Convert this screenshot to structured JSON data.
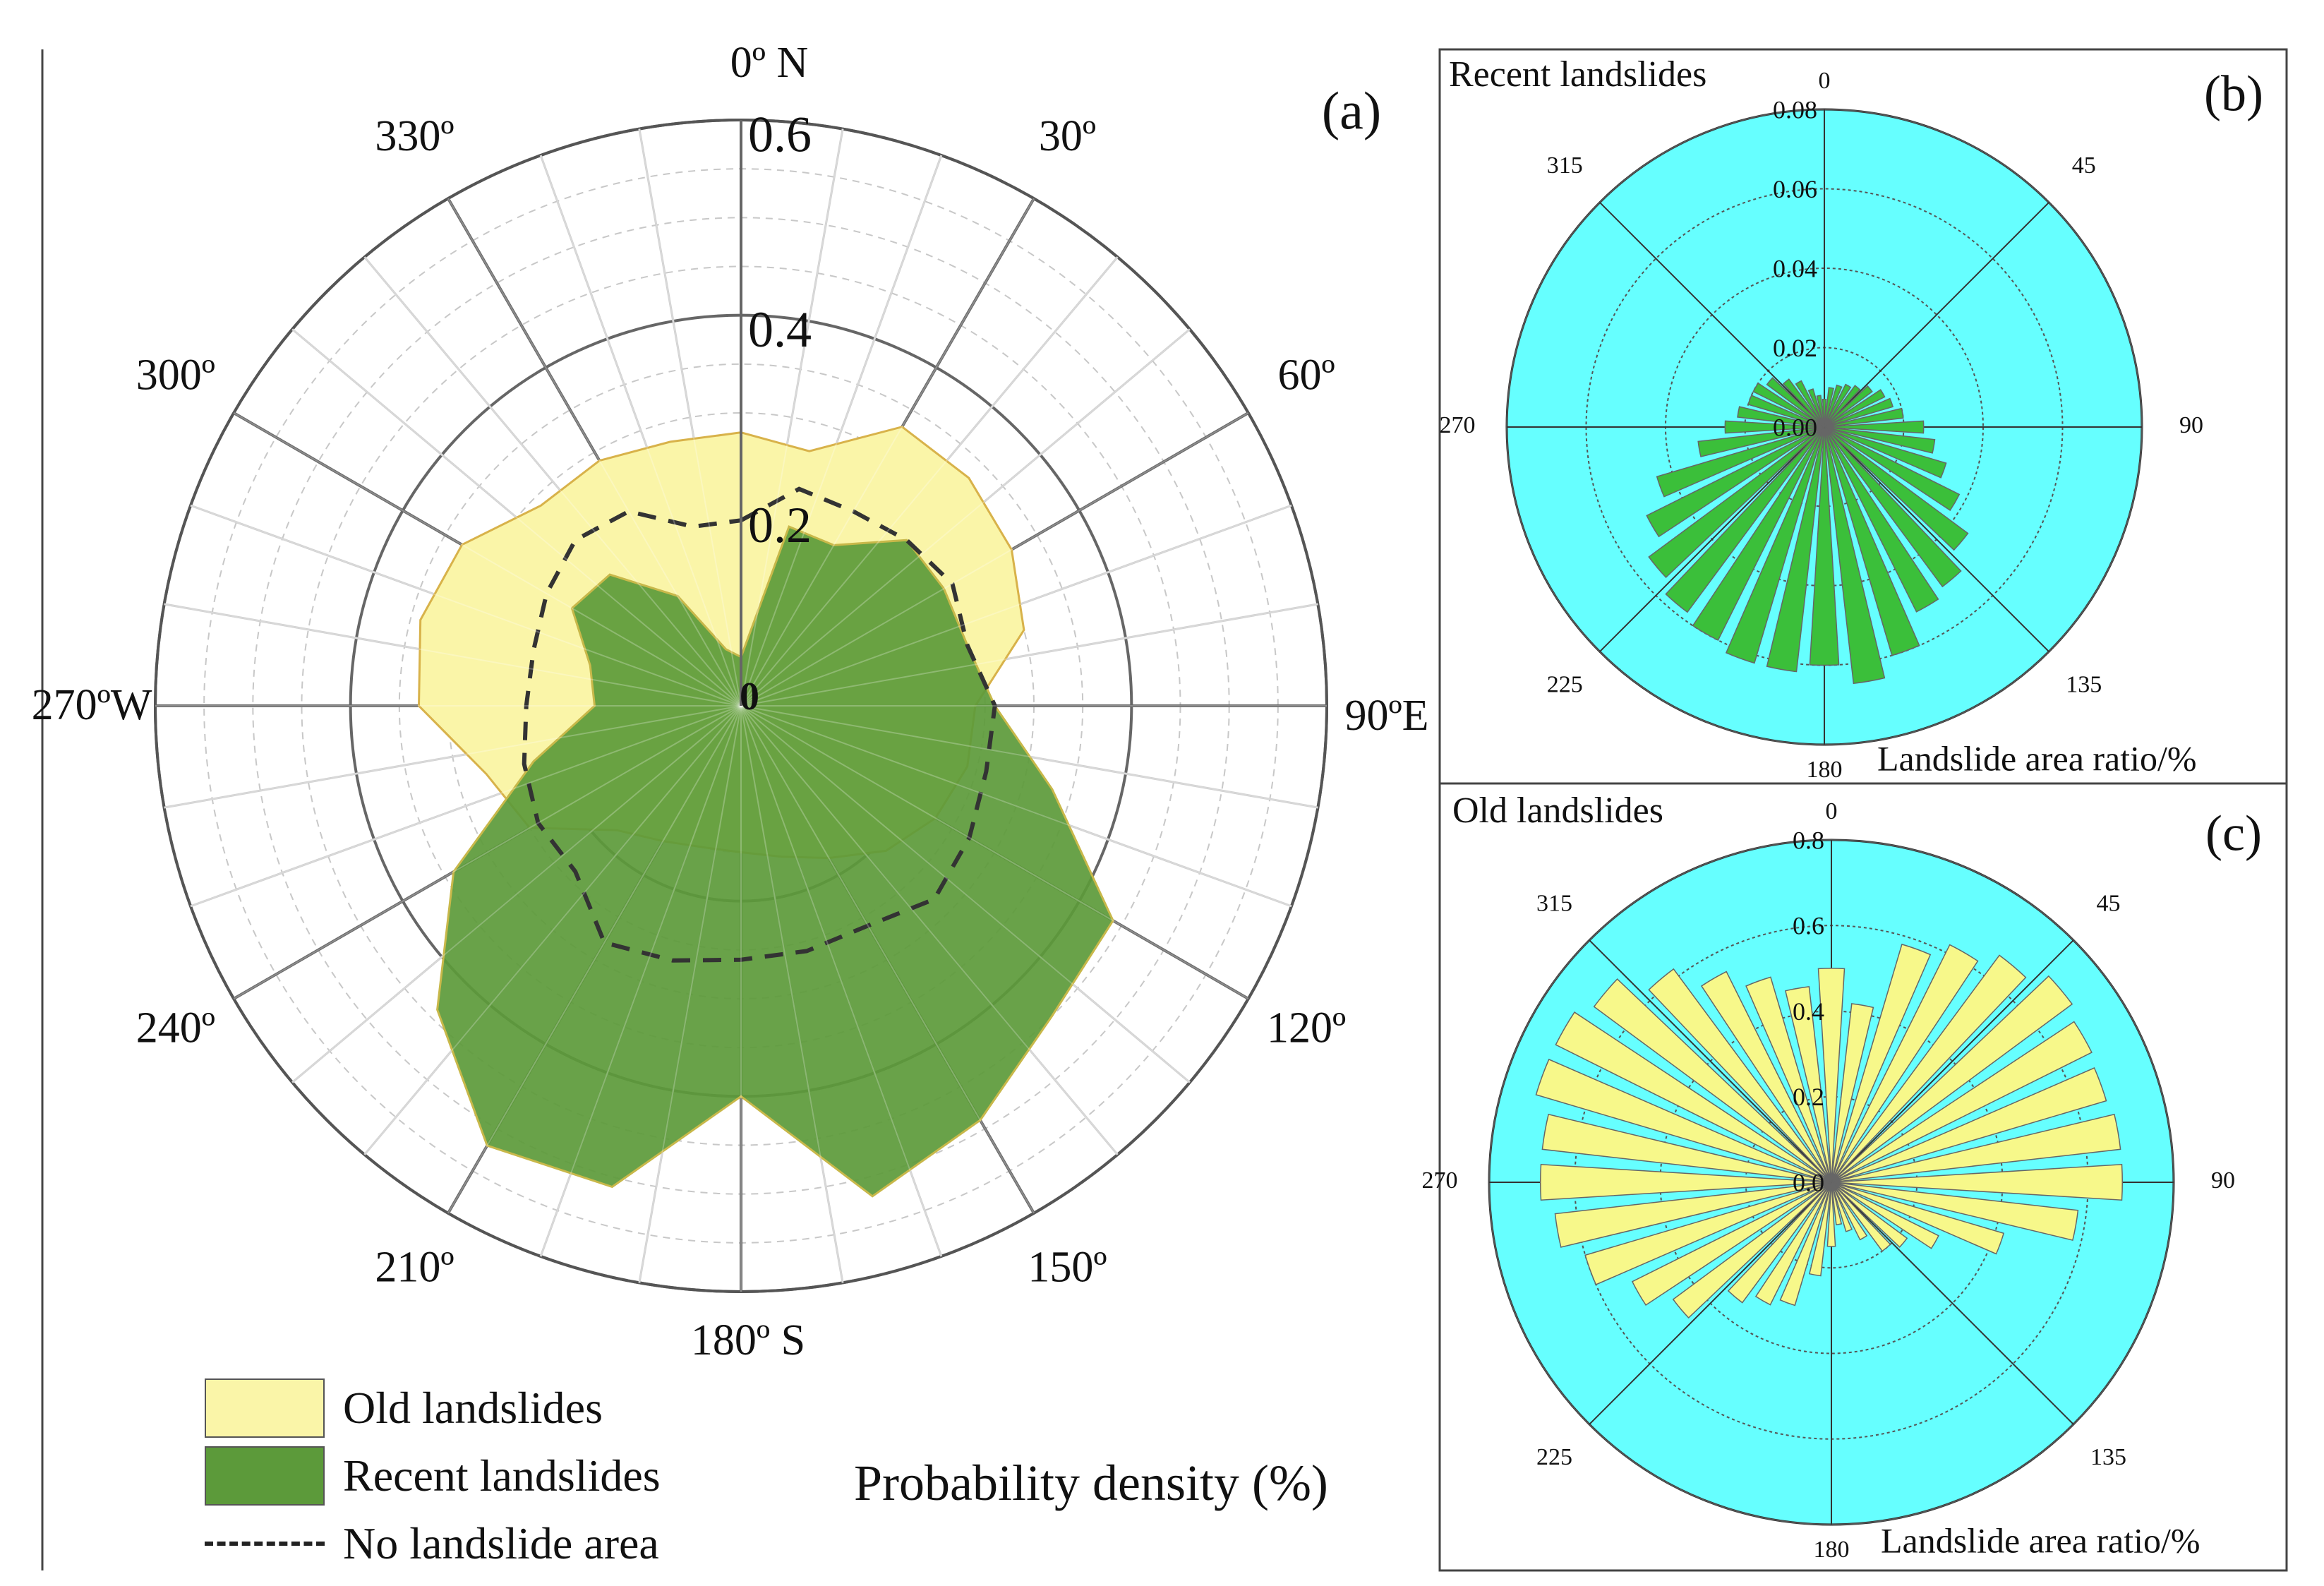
{
  "colors": {
    "old_fill": "#faf5a8",
    "recent_fill": "#5c9a3a",
    "recent_bar": "#3bbf3a",
    "old_bar": "#f7f88a",
    "panel_bg": "#66ffff",
    "grid": "#8a8a8a"
  },
  "chart_data": [
    {
      "panel": "(a)",
      "type": "radar",
      "subplot_label": "(a)",
      "axis_label": "Probability density (%)",
      "rlim": [
        0,
        0.6
      ],
      "radial_ticks": [
        {
          "value": 0,
          "label": "0"
        },
        {
          "value": 0.2,
          "label": "0.2"
        },
        {
          "value": 0.4,
          "label": "0.4"
        },
        {
          "value": 0.6,
          "label": "0.6"
        }
      ],
      "angle_labels": [
        {
          "angle": 0,
          "label": "0º N"
        },
        {
          "angle": 30,
          "label": "30º"
        },
        {
          "angle": 60,
          "label": "60º"
        },
        {
          "angle": 90,
          "label": "90ºE"
        },
        {
          "angle": 120,
          "label": "120º"
        },
        {
          "angle": 150,
          "label": "150º"
        },
        {
          "angle": 180,
          "label": "180º S"
        },
        {
          "angle": 210,
          "label": "210º"
        },
        {
          "angle": 240,
          "label": "240º"
        },
        {
          "angle": 270,
          "label": "270ºW"
        },
        {
          "angle": 300,
          "label": "300º"
        },
        {
          "angle": 330,
          "label": "330º"
        }
      ],
      "series": [
        {
          "name": "Old landslides",
          "style": "filled",
          "points": [
            [
              0,
              0.28
            ],
            [
              15,
              0.27
            ],
            [
              30,
              0.33
            ],
            [
              45,
              0.33
            ],
            [
              60,
              0.32
            ],
            [
              75,
              0.3
            ],
            [
              90,
              0.24
            ],
            [
              105,
              0.24
            ],
            [
              120,
              0.23
            ],
            [
              135,
              0.21
            ],
            [
              150,
              0.18
            ],
            [
              165,
              0.16
            ],
            [
              180,
              0.15
            ],
            [
              195,
              0.15
            ],
            [
              210,
              0.16
            ],
            [
              225,
              0.18
            ],
            [
              240,
              0.25
            ],
            [
              255,
              0.27
            ],
            [
              270,
              0.33
            ],
            [
              285,
              0.34
            ],
            [
              300,
              0.33
            ],
            [
              315,
              0.29
            ],
            [
              330,
              0.29
            ],
            [
              345,
              0.28
            ]
          ]
        },
        {
          "name": "Recent landslides",
          "style": "filled",
          "points": [
            [
              0,
              0.05
            ],
            [
              15,
              0.19
            ],
            [
              30,
              0.19
            ],
            [
              45,
              0.24
            ],
            [
              60,
              0.24
            ],
            [
              75,
              0.24
            ],
            [
              90,
              0.26
            ],
            [
              105,
              0.33
            ],
            [
              120,
              0.44
            ],
            [
              135,
              0.45
            ],
            [
              150,
              0.49
            ],
            [
              165,
              0.52
            ],
            [
              180,
              0.4
            ],
            [
              195,
              0.51
            ],
            [
              210,
              0.52
            ],
            [
              225,
              0.44
            ],
            [
              240,
              0.34
            ],
            [
              255,
              0.22
            ],
            [
              270,
              0.15
            ],
            [
              285,
              0.16
            ],
            [
              300,
              0.2
            ],
            [
              315,
              0.19
            ],
            [
              330,
              0.13
            ],
            [
              345,
              0.06
            ]
          ]
        },
        {
          "name": "No landslide area",
          "style": "dashed",
          "points": [
            [
              0,
              0.19
            ],
            [
              15,
              0.23
            ],
            [
              30,
              0.23
            ],
            [
              45,
              0.24
            ],
            [
              60,
              0.25
            ],
            [
              75,
              0.24
            ],
            [
              90,
              0.26
            ],
            [
              105,
              0.26
            ],
            [
              120,
              0.27
            ],
            [
              135,
              0.28
            ],
            [
              150,
              0.26
            ],
            [
              165,
              0.26
            ],
            [
              180,
              0.26
            ],
            [
              195,
              0.27
            ],
            [
              210,
              0.28
            ],
            [
              225,
              0.24
            ],
            [
              240,
              0.24
            ],
            [
              255,
              0.23
            ],
            [
              270,
              0.22
            ],
            [
              285,
              0.22
            ],
            [
              300,
              0.23
            ],
            [
              315,
              0.24
            ],
            [
              330,
              0.23
            ],
            [
              345,
              0.19
            ]
          ]
        }
      ],
      "legend": [
        {
          "label": "Old landslides"
        },
        {
          "label": "Recent landslides"
        },
        {
          "label": "No landslide area"
        }
      ]
    },
    {
      "panel": "(b)",
      "type": "polar-bar",
      "title": "Recent landslides",
      "subplot_label": "(b)",
      "axis_label": "Landslide area ratio/%",
      "rlim": [
        0,
        0.08
      ],
      "radial_ticks": [
        "0.00",
        "0.02",
        "0.04",
        "0.06",
        "0.08"
      ],
      "angle_labels": [
        "0",
        "45",
        "90",
        "135",
        "180",
        "225",
        "270",
        "315"
      ],
      "bin_width": 10,
      "series": [
        {
          "name": "Recent landslides",
          "angles": [
            0,
            10,
            20,
            30,
            40,
            50,
            60,
            70,
            80,
            90,
            100,
            110,
            120,
            130,
            140,
            150,
            160,
            170,
            180,
            190,
            200,
            210,
            220,
            230,
            240,
            250,
            260,
            270,
            280,
            290,
            300,
            310,
            320,
            330,
            340,
            350
          ],
          "values": [
            0.007,
            0.01,
            0.011,
            0.012,
            0.013,
            0.015,
            0.017,
            0.018,
            0.02,
            0.025,
            0.028,
            0.032,
            0.038,
            0.045,
            0.05,
            0.052,
            0.06,
            0.065,
            0.06,
            0.062,
            0.062,
            0.06,
            0.058,
            0.055,
            0.05,
            0.044,
            0.032,
            0.025,
            0.022,
            0.02,
            0.02,
            0.018,
            0.015,
            0.013,
            0.01,
            0.008
          ]
        }
      ]
    },
    {
      "panel": "(c)",
      "type": "polar-bar",
      "title": "Old landslides",
      "subplot_label": "(c)",
      "axis_label": "Landslide area ratio/%",
      "rlim": [
        0,
        0.8
      ],
      "radial_ticks": [
        "0.0",
        "0.2",
        "0.4",
        "0.6",
        "0.8"
      ],
      "angle_labels": [
        "0",
        "45",
        "90",
        "135",
        "180",
        "225",
        "270",
        "315"
      ],
      "bin_width": 10,
      "series": [
        {
          "name": "Old landslides",
          "angles": [
            0,
            10,
            20,
            30,
            40,
            50,
            60,
            70,
            80,
            90,
            100,
            110,
            120,
            130,
            140,
            150,
            160,
            170,
            180,
            190,
            200,
            210,
            220,
            230,
            240,
            250,
            260,
            270,
            280,
            290,
            300,
            310,
            320,
            330,
            340,
            350
          ],
          "values": [
            0.5,
            0.42,
            0.58,
            0.62,
            0.66,
            0.7,
            0.68,
            0.67,
            0.68,
            0.68,
            0.58,
            0.42,
            0.28,
            0.22,
            0.2,
            0.15,
            0.12,
            0.1,
            0.15,
            0.22,
            0.3,
            0.32,
            0.35,
            0.46,
            0.52,
            0.6,
            0.65,
            0.68,
            0.68,
            0.72,
            0.72,
            0.69,
            0.62,
            0.55,
            0.5,
            0.46
          ]
        }
      ]
    }
  ]
}
